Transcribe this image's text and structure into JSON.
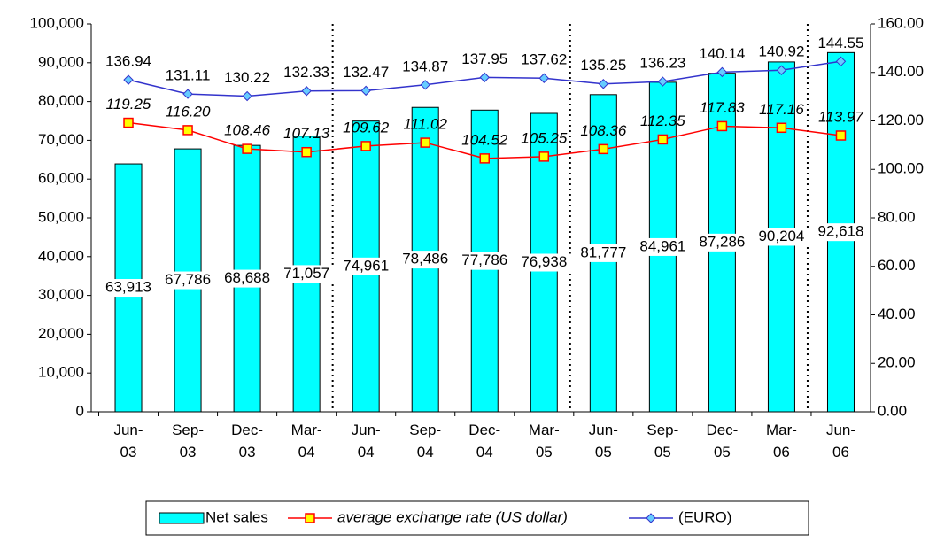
{
  "chart_data": {
    "type": "bar_line",
    "categories": [
      "Jun-03",
      "Sep-03",
      "Dec-03",
      "Mar-04",
      "Jun-04",
      "Sep-04",
      "Dec-04",
      "Mar-05",
      "Jun-05",
      "Sep-05",
      "Dec-05",
      "Mar-06",
      "Jun-06"
    ],
    "series": [
      {
        "name": "Net sales",
        "type": "bar",
        "color": "#00ffff",
        "axis": "y",
        "values": [
          63913,
          67786,
          68688,
          71057,
          74961,
          78486,
          77786,
          76938,
          81777,
          84961,
          87286,
          90204,
          92618
        ],
        "value_labels": [
          "63,913",
          "67,786",
          "68,688",
          "71,057",
          "74,961",
          "78,486",
          "77,786",
          "76,938",
          "81,777",
          "84,961",
          "87,286",
          "90,204",
          "92,618"
        ]
      },
      {
        "name": "average exchange rate (US dollar)",
        "type": "line",
        "color": "#ff0000",
        "marker_color": "#ffff00",
        "marker": "square",
        "axis": "y2",
        "values": [
          119.25,
          116.2,
          108.46,
          107.13,
          109.62,
          111.02,
          104.52,
          105.25,
          108.36,
          112.35,
          117.83,
          117.16,
          113.97
        ],
        "value_labels": [
          "119.25",
          "116.20",
          "108.46",
          "107.13",
          "109.62",
          "111.02",
          "104.52",
          "105.25",
          "108.36",
          "112.35",
          "117.83",
          "117.16",
          "113.97"
        ]
      },
      {
        "name": "(EURO)",
        "type": "line",
        "color": "#3333cc",
        "marker_color": "#66ccff",
        "marker": "diamond",
        "axis": "y2",
        "values": [
          136.94,
          131.11,
          130.22,
          132.33,
          132.47,
          134.87,
          137.95,
          137.62,
          135.25,
          136.23,
          140.14,
          140.92,
          144.55
        ],
        "value_labels": [
          "136.94",
          "131.11",
          "130.22",
          "132.33",
          "132.47",
          "134.87",
          "137.95",
          "137.62",
          "135.25",
          "136.23",
          "140.14",
          "140.92",
          "144.55"
        ]
      }
    ],
    "ylim": [
      0,
      100000
    ],
    "yticks": [
      0,
      {
        "value": 10000,
        "label": "10,000"
      },
      {
        "value": 20000,
        "label": "20,000"
      },
      {
        "value": 30000,
        "label": "30,000"
      },
      {
        "value": 40000,
        "label": "40,000"
      },
      {
        "value": 50000,
        "label": "50,000"
      },
      {
        "value": 60000,
        "label": "60,000"
      },
      {
        "value": 70000,
        "label": "70,000"
      },
      {
        "value": 80000,
        "label": "80,000"
      },
      {
        "value": 90000,
        "label": "90,000"
      },
      {
        "value": 100000,
        "label": "100,000"
      }
    ],
    "y2lim": [
      0,
      160
    ],
    "y2ticks": [
      {
        "value": 0,
        "label": "0.00"
      },
      {
        "value": 20,
        "label": "20.00"
      },
      {
        "value": 40,
        "label": "40.00"
      },
      {
        "value": 60,
        "label": "60.00"
      },
      {
        "value": 80,
        "label": "80.00"
      },
      {
        "value": 100,
        "label": "100.00"
      },
      {
        "value": 120,
        "label": "120.00"
      },
      {
        "value": 140,
        "label": "140.00"
      },
      {
        "value": 160,
        "label": "160.00"
      }
    ],
    "legend": "bottom"
  }
}
